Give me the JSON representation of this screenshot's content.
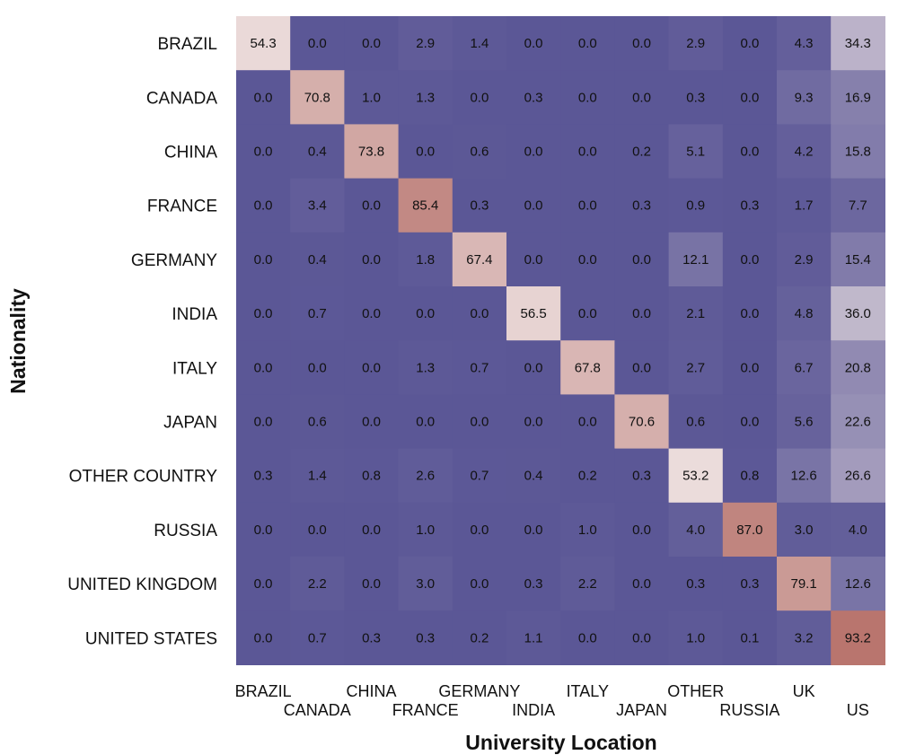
{
  "chart_data": {
    "type": "heatmap",
    "title": "",
    "xlabel": "University Location",
    "ylabel": "Nationality",
    "rows": [
      "BRAZIL",
      "CANADA",
      "CHINA",
      "FRANCE",
      "GERMANY",
      "INDIA",
      "ITALY",
      "JAPAN",
      "OTHER COUNTRY",
      "RUSSIA",
      "UNITED KINGDOM",
      "UNITED STATES"
    ],
    "columns": [
      "BRAZIL",
      "CANADA",
      "CHINA",
      "FRANCE",
      "GERMANY",
      "INDIA",
      "ITALY",
      "JAPAN",
      "OTHER",
      "RUSSIA",
      "UK",
      "US"
    ],
    "values": [
      [
        "54.3",
        "0.0",
        "0.0",
        "2.9",
        "1.4",
        "0.0",
        "0.0",
        "0.0",
        "2.9",
        "0.0",
        "4.3",
        "34.3"
      ],
      [
        "0.0",
        "70.8",
        "1.0",
        "1.3",
        "0.0",
        "0.3",
        "0.0",
        "0.0",
        "0.3",
        "0.0",
        "9.3",
        "16.9"
      ],
      [
        "0.0",
        "0.4",
        "73.8",
        "0.0",
        "0.6",
        "0.0",
        "0.0",
        "0.2",
        "5.1",
        "0.0",
        "4.2",
        "15.8"
      ],
      [
        "0.0",
        "3.4",
        "0.0",
        "85.4",
        "0.3",
        "0.0",
        "0.0",
        "0.3",
        "0.9",
        "0.3",
        "1.7",
        "7.7"
      ],
      [
        "0.0",
        "0.4",
        "0.0",
        "1.8",
        "67.4",
        "0.0",
        "0.0",
        "0.0",
        "12.1",
        "0.0",
        "2.9",
        "15.4"
      ],
      [
        "0.0",
        "0.7",
        "0.0",
        "0.0",
        "0.0",
        "56.5",
        "0.0",
        "0.0",
        "2.1",
        "0.0",
        "4.8",
        "36.0"
      ],
      [
        "0.0",
        "0.0",
        "0.0",
        "1.3",
        "0.7",
        "0.0",
        "67.8",
        "0.0",
        "2.7",
        "0.0",
        "6.7",
        "20.8"
      ],
      [
        "0.0",
        "0.6",
        "0.0",
        "0.0",
        "0.0",
        "0.0",
        "0.0",
        "70.6",
        "0.6",
        "0.0",
        "5.6",
        "22.6"
      ],
      [
        "0.3",
        "1.4",
        "0.8",
        "2.6",
        "0.7",
        "0.4",
        "0.2",
        "0.3",
        "53.2",
        "0.8",
        "12.6",
        "26.6"
      ],
      [
        "0.0",
        "0.0",
        "0.0",
        "1.0",
        "0.0",
        "0.0",
        "1.0",
        "0.0",
        "4.0",
        "87.0",
        "3.0",
        "4.0"
      ],
      [
        "0.0",
        "2.2",
        "0.0",
        "3.0",
        "0.0",
        "0.3",
        "2.2",
        "0.0",
        "0.3",
        "0.3",
        "79.1",
        "12.6"
      ],
      [
        "0.0",
        "0.7",
        "0.3",
        "0.3",
        "0.2",
        "1.1",
        "0.0",
        "0.0",
        "1.0",
        "0.1",
        "3.2",
        "93.2"
      ]
    ],
    "color_scale": {
      "low": "#5b5796",
      "mid": "#efe4e4",
      "high": "#b0645c",
      "min": 0,
      "mid_value": 50,
      "max": 100
    },
    "grid": false,
    "legend": "none"
  }
}
